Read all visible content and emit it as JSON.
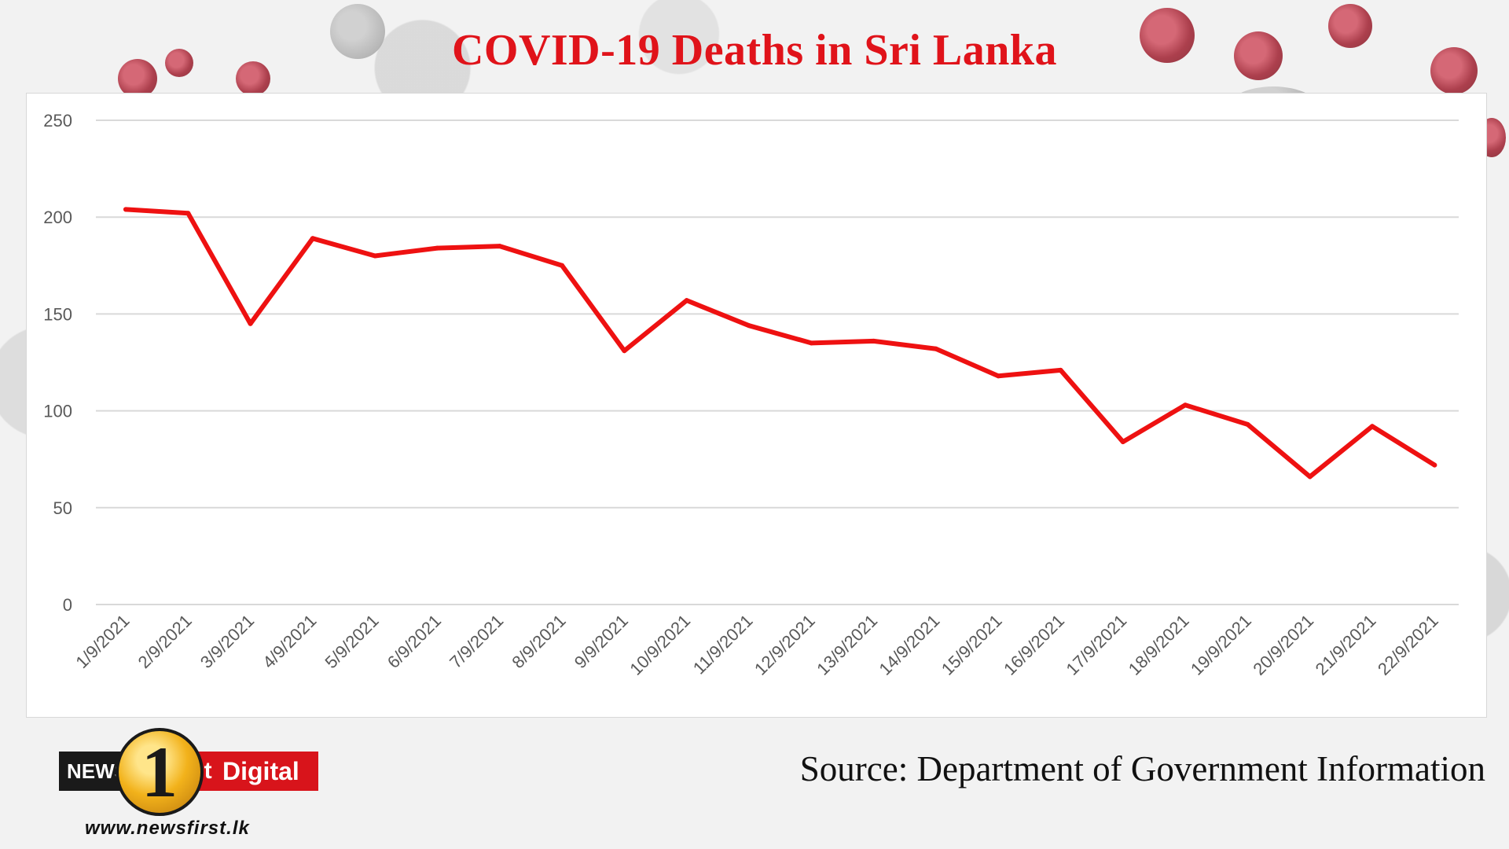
{
  "header": {
    "title": "COVID-19 Deaths in Sri Lanka"
  },
  "footer": {
    "source": "Source: Department of Government Information",
    "logo_news": "NEWS",
    "logo_one": "1",
    "logo_st": "st",
    "logo_digital": "Digital",
    "url": "www.newsfirst.lk"
  },
  "colors": {
    "title": "#e0131a",
    "line": "#ee1111",
    "grid": "#d9d9d9",
    "axis_text": "#595959"
  },
  "chart_data": {
    "type": "line",
    "title": "COVID-19 Deaths in Sri Lanka",
    "xlabel": "",
    "ylabel": "",
    "ylim": [
      0,
      250
    ],
    "yticks": [
      0,
      50,
      100,
      150,
      200,
      250
    ],
    "grid": true,
    "categories": [
      "1/9/2021",
      "2/9/2021",
      "3/9/2021",
      "4/9/2021",
      "5/9/2021",
      "6/9/2021",
      "7/9/2021",
      "8/9/2021",
      "9/9/2021",
      "10/9/2021",
      "11/9/2021",
      "12/9/2021",
      "13/9/2021",
      "14/9/2021",
      "15/9/2021",
      "16/9/2021",
      "17/9/2021",
      "18/9/2021",
      "19/9/2021",
      "20/9/2021",
      "21/9/2021",
      "22/9/2021"
    ],
    "series": [
      {
        "values": [
          204,
          202,
          145,
          189,
          180,
          184,
          185,
          175,
          131,
          157,
          144,
          135,
          136,
          132,
          118,
          121,
          84,
          103,
          93,
          66,
          92,
          72
        ]
      }
    ]
  }
}
